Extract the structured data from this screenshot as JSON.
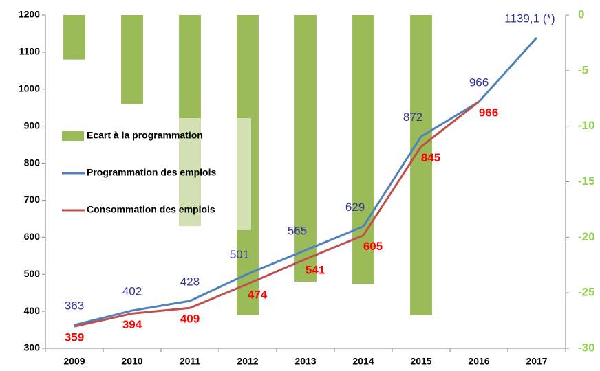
{
  "chart_data": {
    "type": "bar",
    "categories": [
      "2009",
      "2010",
      "2011",
      "2012",
      "2013",
      "2014",
      "2015",
      "2016",
      "2017"
    ],
    "series": [
      {
        "name": "Ecart à la programmation",
        "type": "bar",
        "axis": "y2",
        "color": "#9bbb59",
        "values": [
          -4,
          -8,
          -19,
          -27,
          -24,
          -24.2,
          -27,
          null,
          null
        ]
      },
      {
        "name": "Programmation des emplois",
        "type": "line",
        "color": "#4f81bd",
        "label_color": "#333399",
        "values": [
          363,
          402,
          428,
          501,
          565,
          629,
          872,
          966,
          1139.1
        ],
        "value_labels": [
          "363",
          "402",
          "428",
          "501",
          "565",
          "629",
          "872",
          "966",
          "1139,1 (*)"
        ]
      },
      {
        "name": "Consommation des emplois",
        "type": "line",
        "color": "#c0504d",
        "label_color": "#ff0000",
        "values": [
          359,
          394,
          409,
          474,
          541,
          605,
          845,
          966,
          null
        ]
      }
    ],
    "ylim": [
      300,
      1200
    ],
    "yticks": [
      300,
      400,
      500,
      600,
      700,
      800,
      900,
      1000,
      1100,
      1200
    ],
    "y2lim": [
      -30,
      0
    ],
    "y2ticks": [
      -30,
      -25,
      -20,
      -15,
      -10,
      -5,
      0
    ],
    "y2_color": "#92d050",
    "legend": "left",
    "grid": false
  }
}
